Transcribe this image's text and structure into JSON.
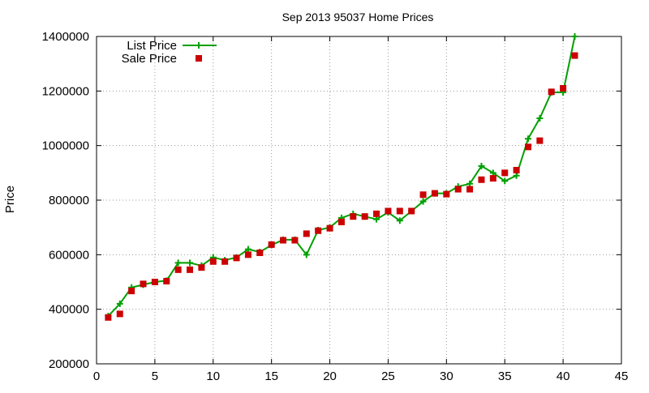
{
  "chart_data": {
    "type": "line",
    "title": "Sep 2013 95037 Home Prices",
    "xlabel": "",
    "ylabel": "Price",
    "xlim": [
      0,
      45
    ],
    "ylim": [
      200000,
      1400000
    ],
    "xticks": [
      0,
      5,
      10,
      15,
      20,
      25,
      30,
      35,
      40,
      45
    ],
    "yticks": [
      200000,
      400000,
      600000,
      800000,
      1000000,
      1200000,
      1400000
    ],
    "xtick_labels": [
      "0",
      "5",
      "10",
      "15",
      "20",
      "25",
      "30",
      "35",
      "40",
      "45"
    ],
    "ytick_labels": [
      "200000",
      "400000",
      "600000",
      "800000",
      "1000000",
      "1200000",
      "1400000"
    ],
    "grid": true,
    "legend_position": "top-left",
    "series": [
      {
        "name": "List Price",
        "style": "line-points",
        "color": "#00a000",
        "marker": "plus",
        "x": [
          1,
          2,
          3,
          4,
          5,
          6,
          7,
          8,
          9,
          10,
          11,
          12,
          13,
          14,
          15,
          16,
          17,
          18,
          19,
          20,
          21,
          22,
          23,
          24,
          25,
          26,
          27,
          28,
          29,
          30,
          31,
          32,
          33,
          34,
          35,
          36,
          37,
          38,
          39,
          40,
          41
        ],
        "y": [
          375000,
          420000,
          480000,
          490000,
          500000,
          505000,
          570000,
          570000,
          560000,
          590000,
          580000,
          590000,
          620000,
          610000,
          635000,
          655000,
          655000,
          600000,
          690000,
          700000,
          735000,
          750000,
          740000,
          730000,
          755000,
          725000,
          760000,
          795000,
          825000,
          825000,
          850000,
          860000,
          925000,
          900000,
          870000,
          890000,
          1025000,
          1100000,
          1195000,
          1195000,
          1400000
        ]
      },
      {
        "name": "Sale Price",
        "style": "points",
        "color": "#cc0000",
        "marker": "square",
        "x": [
          1,
          2,
          3,
          4,
          5,
          6,
          7,
          8,
          9,
          10,
          11,
          12,
          13,
          14,
          15,
          16,
          17,
          18,
          19,
          20,
          21,
          22,
          23,
          24,
          25,
          26,
          27,
          28,
          29,
          30,
          31,
          32,
          33,
          34,
          35,
          36,
          37,
          38,
          39,
          40,
          41
        ],
        "y": [
          370000,
          383000,
          467000,
          493000,
          500000,
          503000,
          545000,
          545000,
          553000,
          575000,
          575000,
          588000,
          600000,
          607000,
          637000,
          653000,
          653000,
          677000,
          688000,
          697000,
          720000,
          740000,
          740000,
          750000,
          760000,
          760000,
          760000,
          820000,
          825000,
          822000,
          840000,
          840000,
          875000,
          880000,
          900000,
          910000,
          995000,
          1018000,
          1197000,
          1210000,
          1330000
        ]
      }
    ]
  }
}
